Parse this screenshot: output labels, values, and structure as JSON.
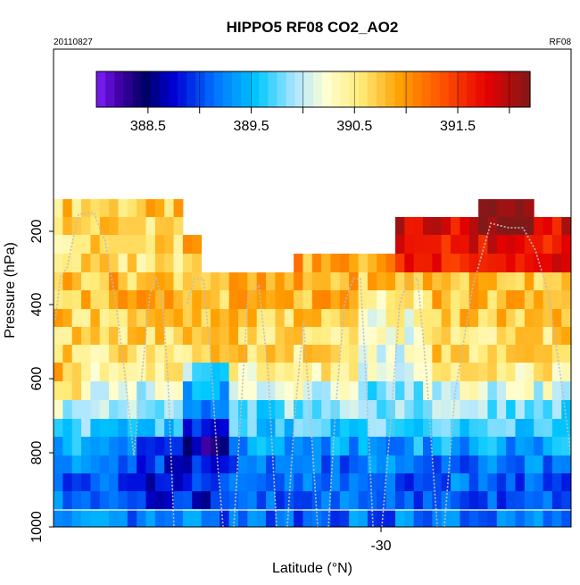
{
  "chart_data": {
    "type": "heatmap",
    "title": "HIPPO5 RF08 CO2_AO2",
    "subtitle_left": "20110827",
    "subtitle_right": "RF08",
    "xlabel": "Latitude (°N)",
    "ylabel": "Pressure (hPa)",
    "x_ticks": [
      "-30"
    ],
    "y_ticks": [
      "200",
      "400",
      "600",
      "800",
      "1000"
    ],
    "ylim": [
      1000,
      0
    ],
    "colorbar": {
      "range": [
        388.0,
        392.2
      ],
      "ticks": [
        "388.5",
        "389.5",
        "390.5",
        "391.5"
      ],
      "orientation": "horizontal",
      "placement": "top"
    },
    "grid": false,
    "colors": {
      "low": "#7f1fff",
      "mid_low": "#00c8ff",
      "mid": "#ffffd0",
      "mid_high": "#ffa000",
      "high": "#8c1a1a",
      "flight_track": "#bdbdbd"
    }
  }
}
